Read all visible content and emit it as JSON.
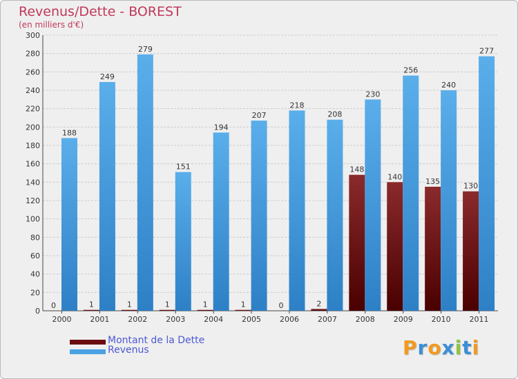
{
  "chart_data": {
    "type": "bar",
    "title": "Revenus/Dette - BOREST",
    "subtitle": "(en milliers d'€)",
    "categories": [
      "2000",
      "2001",
      "2002",
      "2003",
      "2004",
      "2005",
      "2006",
      "2007",
      "2008",
      "2009",
      "2010",
      "2011"
    ],
    "series": [
      {
        "name": "Montant de la Dette",
        "color": "#6b0d10",
        "values": [
          0,
          1,
          1,
          1,
          1,
          1,
          0,
          2,
          148,
          140,
          135,
          130
        ]
      },
      {
        "name": "Revenus",
        "color": "#4aa2e4",
        "values": [
          188,
          249,
          279,
          151,
          194,
          207,
          218,
          208,
          230,
          256,
          240,
          277
        ]
      }
    ],
    "ylim": [
      0,
      300
    ],
    "yticks": [
      0,
      20,
      40,
      60,
      80,
      100,
      120,
      140,
      160,
      180,
      200,
      220,
      240,
      260,
      280,
      300
    ],
    "grid": true,
    "legend_position": "bottom-left"
  },
  "logo": {
    "text": "Proxiti",
    "letters": [
      "P",
      "r",
      "o",
      "x",
      "i",
      "t",
      "i"
    ],
    "colors": [
      "#f29a1e",
      "#3b8fd6",
      "#f29a1e",
      "#3b8fd6",
      "#8cc63f",
      "#3b8fd6",
      "#f29a1e"
    ]
  }
}
